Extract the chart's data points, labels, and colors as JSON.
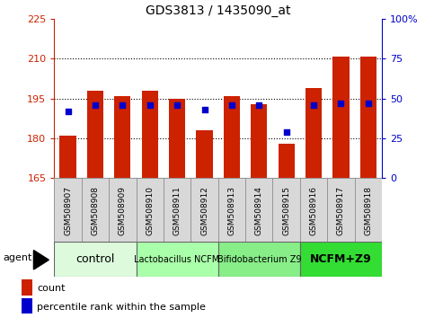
{
  "title": "GDS3813 / 1435090_at",
  "samples": [
    "GSM508907",
    "GSM508908",
    "GSM508909",
    "GSM508910",
    "GSM508911",
    "GSM508912",
    "GSM508913",
    "GSM508914",
    "GSM508915",
    "GSM508916",
    "GSM508917",
    "GSM508918"
  ],
  "bar_values": [
    181,
    198,
    196,
    198,
    195,
    183,
    196,
    193,
    178,
    199,
    211,
    211
  ],
  "percentile_values": [
    42,
    46,
    46,
    46,
    46,
    43,
    46,
    46,
    29,
    46,
    47,
    47
  ],
  "bar_bottom": 165,
  "ylim_left": [
    165,
    225
  ],
  "ylim_right": [
    0,
    100
  ],
  "yticks_left": [
    165,
    180,
    195,
    210,
    225
  ],
  "yticks_right": [
    0,
    25,
    50,
    75,
    100
  ],
  "bar_color": "#cc2200",
  "percentile_color": "#0000cc",
  "bar_width": 0.6,
  "groups": [
    {
      "label": "control",
      "start": 0,
      "end": 2,
      "color": "#ddfadd"
    },
    {
      "label": "Lactobacillus NCFM",
      "start": 3,
      "end": 5,
      "color": "#aaffaa"
    },
    {
      "label": "Bifidobacterium Z9",
      "start": 6,
      "end": 8,
      "color": "#88ee88"
    },
    {
      "label": "NCFM+Z9",
      "start": 9,
      "end": 11,
      "color": "#33dd33"
    }
  ],
  "agent_label": "agent",
  "legend_count_label": "count",
  "legend_percentile_label": "percentile rank within the sample",
  "left_axis_color": "#cc2200",
  "right_axis_color": "#0000cc",
  "tick_bg_color": "#d8d8d8",
  "tick_edge_color": "#aaaaaa"
}
